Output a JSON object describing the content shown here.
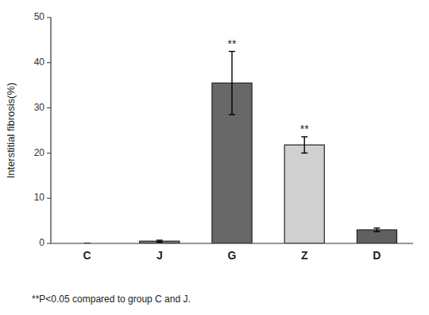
{
  "chart_data": {
    "type": "bar",
    "categories": [
      "C",
      "J",
      "G",
      "Z",
      "D"
    ],
    "values": [
      0.0,
      0.5,
      35.5,
      21.8,
      3.0
    ],
    "errors": [
      0.0,
      0.2,
      7.0,
      1.8,
      0.4
    ],
    "colors": [
      "#808080",
      "#808080",
      "#686868",
      "#d0d0d0",
      "#606060"
    ],
    "y_label": "Interstitial fibrosis(%)",
    "ylim": [
      0,
      50
    ],
    "yticks": [
      0,
      10,
      20,
      30,
      40,
      50
    ],
    "annotations": [
      {
        "category": "G",
        "text": "**"
      },
      {
        "category": "Z",
        "text": "**"
      }
    ],
    "footnote": "**P<0.05 compared to group C and J.",
    "grid": false
  }
}
